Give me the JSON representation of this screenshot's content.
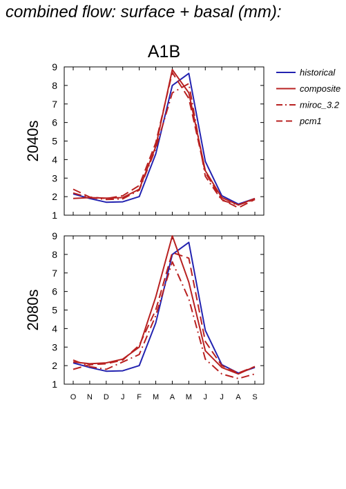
{
  "page_title": "combined flow: surface + basal (mm):",
  "chart_data": [
    {
      "type": "line",
      "title": "A1B",
      "ylabel": "2040s",
      "ylim": [
        1,
        9
      ],
      "yticks": [
        1,
        2,
        3,
        4,
        5,
        6,
        7,
        8,
        9
      ],
      "categories": [
        "O",
        "N",
        "D",
        "J",
        "F",
        "M",
        "A",
        "M",
        "J",
        "J",
        "A",
        "S"
      ],
      "show_xtick_labels": false,
      "legend_position": "right",
      "series": [
        {
          "name": "historical",
          "color": "#2222b0",
          "dash": "solid",
          "values": [
            2.15,
            1.9,
            1.7,
            1.72,
            2.0,
            4.3,
            8.0,
            8.65,
            3.9,
            2.05,
            1.6,
            1.9
          ]
        },
        {
          "name": "composite",
          "color": "#b82020",
          "dash": "solid",
          "values": [
            1.9,
            1.95,
            1.92,
            1.95,
            2.4,
            4.7,
            8.85,
            7.6,
            3.4,
            1.95,
            1.55,
            1.9
          ]
        },
        {
          "name": "miroc_3.2",
          "color": "#b82020",
          "dash": "dashdot",
          "values": [
            2.2,
            1.95,
            1.85,
            1.88,
            2.35,
            4.6,
            7.6,
            8.1,
            3.1,
            1.8,
            1.55,
            1.85
          ]
        },
        {
          "name": "pcm1",
          "color": "#b82020",
          "dash": "dash",
          "values": [
            2.4,
            1.98,
            1.9,
            2.05,
            2.6,
            4.9,
            8.7,
            7.3,
            3.3,
            1.85,
            1.4,
            1.85
          ]
        }
      ]
    },
    {
      "type": "line",
      "title": "",
      "ylabel": "2080s",
      "ylim": [
        1,
        9
      ],
      "yticks": [
        1,
        2,
        3,
        4,
        5,
        6,
        7,
        8,
        9
      ],
      "categories": [
        "O",
        "N",
        "D",
        "J",
        "F",
        "M",
        "A",
        "M",
        "J",
        "J",
        "A",
        "S"
      ],
      "show_xtick_labels": true,
      "series": [
        {
          "name": "historical",
          "color": "#2222b0",
          "dash": "solid",
          "values": [
            2.15,
            1.9,
            1.7,
            1.72,
            2.0,
            4.3,
            8.0,
            8.65,
            3.9,
            2.05,
            1.6,
            1.9
          ]
        },
        {
          "name": "composite",
          "color": "#b82020",
          "dash": "solid",
          "values": [
            2.2,
            2.1,
            2.15,
            2.35,
            3.0,
            5.7,
            9.0,
            6.5,
            2.8,
            1.9,
            1.55,
            1.95
          ]
        },
        {
          "name": "miroc_3.2",
          "color": "#b82020",
          "dash": "dashdot",
          "values": [
            2.3,
            1.95,
            1.8,
            2.2,
            2.6,
            4.7,
            7.6,
            5.6,
            2.35,
            1.55,
            1.3,
            1.55
          ]
        },
        {
          "name": "pcm1",
          "color": "#b82020",
          "dash": "dash",
          "values": [
            1.8,
            2.05,
            2.1,
            2.3,
            3.1,
            5.0,
            8.1,
            7.8,
            3.3,
            2.0,
            1.6,
            1.95
          ]
        }
      ]
    }
  ]
}
